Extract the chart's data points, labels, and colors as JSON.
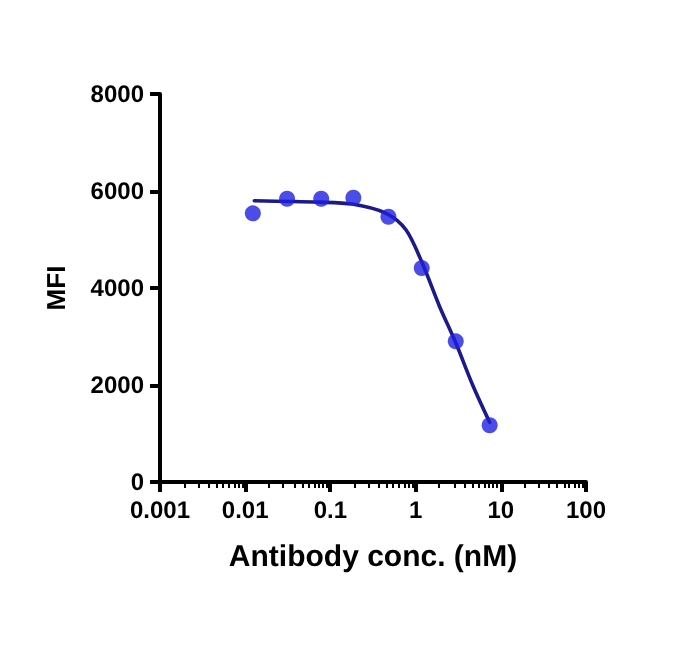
{
  "chart_data": {
    "type": "scatter",
    "xlabel": "Antibody conc. (nM)",
    "ylabel": "MFI",
    "log": "x",
    "xlim": [
      0.001,
      100
    ],
    "xticks": [
      0.001,
      0.01,
      0.1,
      1,
      10,
      100
    ],
    "ylim": [
      0,
      8000
    ],
    "yticks": [
      0,
      2000,
      4000,
      6000,
      8000
    ],
    "grid": false,
    "series": [
      {
        "type": "scatter",
        "color": "#1f1fe0",
        "marker": "circle",
        "x": [
          0.0123,
          0.031,
          0.078,
          0.186,
          0.48,
          1.18,
          2.96,
          7.4
        ],
        "values": [
          5540,
          5840,
          5840,
          5860,
          5470,
          4410,
          2900,
          1170
        ]
      },
      {
        "type": "line",
        "color": "#1a1a8c",
        "marker": "none",
        "line_style": "solid",
        "x": [
          0.0128,
          0.0735,
          0.18,
          0.45,
          0.77,
          1.2,
          1.9,
          2.96,
          4.7,
          7.4
        ],
        "values": [
          5800,
          5770,
          5730,
          5540,
          5200,
          4510,
          3630,
          2870,
          1990,
          1230
        ]
      }
    ]
  }
}
